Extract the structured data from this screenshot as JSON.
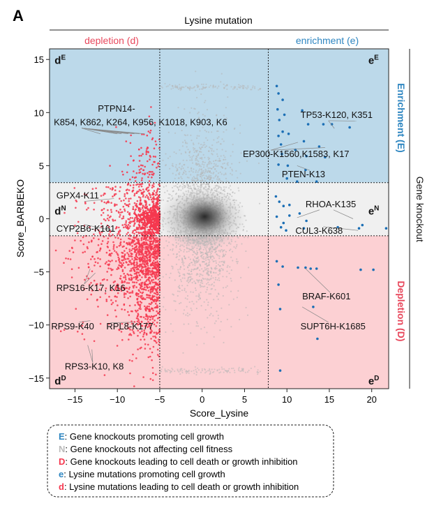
{
  "panel_label": "A",
  "top_axis_title": "Lysine mutation",
  "right_axis_title": "Gene knockout",
  "chart_data": {
    "type": "scatter",
    "title": "",
    "xlabel": "Score_Lysine",
    "ylabel": "Score_BARBEKO",
    "xlim": [
      -18,
      22
    ],
    "ylim": [
      -16,
      16
    ],
    "x_ticks": [
      -15,
      -10,
      -5,
      0,
      5,
      10,
      15,
      20
    ],
    "y_ticks": [
      15,
      10,
      5,
      0,
      -5,
      -10,
      -15
    ],
    "x_tick_labels": [
      "−15",
      "−10",
      "−5",
      "0",
      "5",
      "10",
      "15",
      "20"
    ],
    "y_tick_labels": [
      "15",
      "10",
      "5",
      "0",
      "−5",
      "−10",
      "−15"
    ],
    "thresholds": {
      "x_low": -5,
      "x_high": 7.8,
      "y_low": -1.6,
      "y_high": 3.4
    },
    "colors": {
      "enrichment_band": "#bcd9ea",
      "neutral_band": "#f0f0f0",
      "depletion_band": "#fcd0d3",
      "red": "#f5384f",
      "blue": "#1c6fb5",
      "grey": "#b5b5b5",
      "core": "#333333",
      "top_red": "#e8485c",
      "top_blue": "#2e86c1",
      "label_line": "#888888"
    },
    "column_headers": [
      {
        "text": "depletion (d)",
        "color": "#e8485c"
      },
      {
        "text": "enrichment (e)",
        "color": "#2e86c1"
      }
    ],
    "row_headers": [
      {
        "text": "Enrichment (E)",
        "color": "#2e86c1",
        "y": 9.5
      },
      {
        "text": "Gene knockout",
        "color": "#111111",
        "y": 0.9
      },
      {
        "text": "Depletion (D)",
        "color": "#e8485c",
        "y": -8.7
      }
    ],
    "quadrant_labels": [
      {
        "base": "d",
        "sup": "E",
        "x": -17.4,
        "y": 14.6
      },
      {
        "base": "e",
        "sup": "E",
        "x": 19.6,
        "y": 14.6
      },
      {
        "base": "d",
        "sup": "N",
        "x": -17.4,
        "y": 0.4
      },
      {
        "base": "e",
        "sup": "N",
        "x": 19.6,
        "y": 0.4
      },
      {
        "base": "d",
        "sup": "D",
        "x": -17.4,
        "y": -15.6
      },
      {
        "base": "e",
        "sup": "D",
        "x": 19.6,
        "y": -15.6
      }
    ],
    "series": [
      {
        "name": "e mutations (blue)",
        "color": "#1c6fb5",
        "points": [
          [
            8.8,
            12.5
          ],
          [
            9.0,
            11.8
          ],
          [
            9.5,
            11.2
          ],
          [
            8.9,
            10.3
          ],
          [
            9.7,
            9.8
          ],
          [
            11.8,
            10.2
          ],
          [
            9.1,
            9.3
          ],
          [
            12.5,
            8.9
          ],
          [
            14.3,
            8.9
          ],
          [
            15.3,
            8.9
          ],
          [
            17.4,
            8.6
          ],
          [
            9.5,
            8.2
          ],
          [
            10.2,
            8.0
          ],
          [
            9.0,
            7.8
          ],
          [
            12.0,
            7.3
          ],
          [
            9.3,
            7.0
          ],
          [
            11.0,
            6.5
          ],
          [
            13.8,
            6.8
          ],
          [
            9.4,
            6.1
          ],
          [
            12.3,
            5.9
          ],
          [
            14.5,
            5.8
          ],
          [
            9.0,
            5.1
          ],
          [
            10.1,
            5.0
          ],
          [
            12.2,
            4.6
          ],
          [
            10.0,
            3.8
          ],
          [
            11.2,
            3.5
          ],
          [
            13.5,
            3.5
          ],
          [
            8.7,
            2.1
          ],
          [
            9.1,
            1.6
          ],
          [
            9.6,
            1.2
          ],
          [
            10.3,
            1.3
          ],
          [
            8.8,
            0.2
          ],
          [
            9.6,
            -0.4
          ],
          [
            10.3,
            0.3
          ],
          [
            11.5,
            0.5
          ],
          [
            12.3,
            -0.2
          ],
          [
            9.3,
            -0.8
          ],
          [
            9.9,
            -1.1
          ],
          [
            12.0,
            -0.9
          ],
          [
            16.0,
            -0.8
          ],
          [
            18.5,
            -0.9
          ],
          [
            18.9,
            -0.6
          ],
          [
            21.7,
            -0.9
          ],
          [
            8.8,
            -4.0
          ],
          [
            9.5,
            -4.5
          ],
          [
            11.3,
            -4.6
          ],
          [
            12.2,
            -4.6
          ],
          [
            12.8,
            -4.7
          ],
          [
            13.5,
            -4.7
          ],
          [
            18.7,
            -4.8
          ],
          [
            20.2,
            -4.8
          ],
          [
            9.0,
            -6.2
          ],
          [
            9.2,
            -8.5
          ],
          [
            13.1,
            -8.3
          ],
          [
            13.6,
            -11.3
          ],
          [
            9.2,
            -14.3
          ]
        ]
      }
    ],
    "labels": [
      {
        "text": "PTPN14-",
        "x": -12.3,
        "y": 10.1,
        "targets": []
      },
      {
        "text": "K854, K862, K264, K956, K1018, K903, K6",
        "x": -17.5,
        "y": 8.8,
        "targets": [
          [
            -12,
            8
          ],
          [
            -10,
            8
          ],
          [
            -9.5,
            8
          ],
          [
            -8.7,
            8
          ],
          [
            -8,
            8
          ],
          [
            -7.4,
            8
          ],
          [
            -6.8,
            8
          ]
        ]
      },
      {
        "text": "TP53-K120, K351",
        "x": 11.6,
        "y": 9.5,
        "targets": [
          [
            15.6,
            8.5
          ],
          [
            18.2,
            9.2
          ]
        ]
      },
      {
        "text": "EP300-K1560,K1583, K17",
        "x": 4.8,
        "y": 5.8,
        "targets": [
          [
            11.3,
            7.2
          ],
          [
            14.5,
            6.7
          ]
        ]
      },
      {
        "text": "PTEN-K13",
        "x": 9.4,
        "y": 3.9,
        "targets": [
          [
            11.2,
            5.0
          ]
        ]
      },
      {
        "text": "GPX4-K11",
        "x": -17.2,
        "y": 1.9,
        "targets": [
          [
            -10.4,
            1.9
          ]
        ]
      },
      {
        "text": "RHOA-K135",
        "x": 12.2,
        "y": 1.1,
        "targets": [
          [
            11.2,
            0.1
          ],
          [
            17.8,
            0.0
          ]
        ]
      },
      {
        "text": "CYP2B6-K161",
        "x": -17.2,
        "y": -1.2,
        "targets": [
          [
            -10.6,
            -1.1
          ]
        ]
      },
      {
        "text": "CUL3-K638",
        "x": 11.0,
        "y": -1.4,
        "targets": [
          [
            18.4,
            -1.1
          ]
        ]
      },
      {
        "text": "RPS16-K17, K16",
        "x": -17.2,
        "y": -6.8,
        "targets": [
          [
            -13.2,
            -4.7
          ],
          [
            -12.6,
            -5.1
          ]
        ]
      },
      {
        "text": "BRAF-K601",
        "x": 11.8,
        "y": -7.6,
        "targets": [
          [
            12.2,
            -4.7
          ]
        ]
      },
      {
        "text": "RPS9-K40",
        "x": -17.8,
        "y": -10.4,
        "targets": [
          [
            -13.2,
            -9.6
          ]
        ]
      },
      {
        "text": "RPL8-K177",
        "x": -11.3,
        "y": -10.4,
        "targets": [
          [
            -10.8,
            -9.8
          ]
        ]
      },
      {
        "text": "SUPT6H-K1685",
        "x": 11.6,
        "y": -10.4,
        "targets": [
          [
            11.8,
            -8.3
          ]
        ]
      },
      {
        "text": "RPS3-K10, K8",
        "x": -16.2,
        "y": -14.2,
        "targets": [
          [
            -13.5,
            -11.9
          ],
          [
            -13.0,
            -12.3
          ]
        ]
      }
    ]
  },
  "legend": [
    {
      "key": "E",
      "key_color": "#2e86c1",
      "text": ": Gene knockouts promoting cell growth"
    },
    {
      "key": "N",
      "key_color": "#bbbbbb",
      "text": ": Gene knockouts not affecting cell fitness"
    },
    {
      "key": "D",
      "key_color": "#f5384f",
      "text": ": Gene knockouts leading to cell death or growth inhibition"
    },
    {
      "key": "e",
      "key_color": "#2e86c1",
      "text": ": Lysine mutations promoting cell growth"
    },
    {
      "key": "d",
      "key_color": "#f5384f",
      "text": ": Lysine mutations leading to cell death or growth inhibition"
    }
  ]
}
